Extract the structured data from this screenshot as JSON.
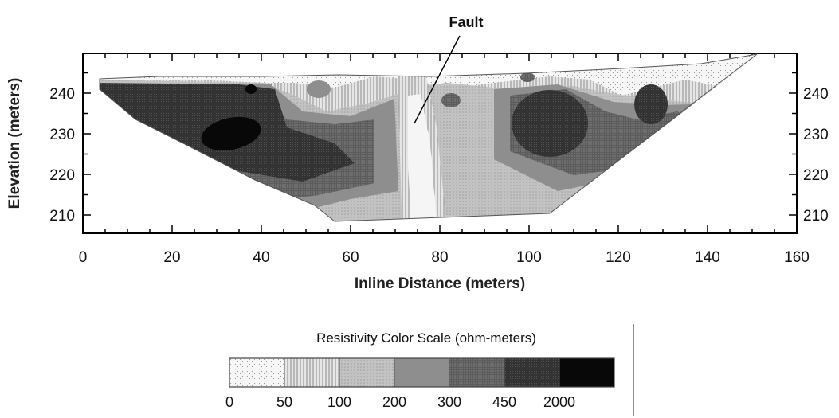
{
  "chart_data": {
    "type": "heatmap",
    "title": "",
    "xlabel": "Inline Distance (meters)",
    "ylabel": "Elevation (meters)",
    "xlim": [
      0,
      160
    ],
    "ylim": [
      205,
      250
    ],
    "x_ticks": [
      0,
      20,
      40,
      60,
      80,
      100,
      120,
      140,
      160
    ],
    "y_ticks": [
      210,
      220,
      230,
      240
    ],
    "grid": false,
    "annotations": [
      {
        "text": "Fault",
        "x": 74,
        "y": 234
      }
    ],
    "profile_outline": {
      "x": [
        4,
        20,
        40,
        57,
        76,
        105,
        152
      ],
      "surface": [
        243.5,
        244,
        244,
        245,
        244.5,
        246,
        249
      ],
      "bottom": [
        241,
        225,
        214,
        208,
        208,
        210,
        249
      ]
    },
    "color_scale": {
      "title": "Resistivity Color Scale (ohm-meters)",
      "boundaries": [
        "0",
        "50",
        "100",
        "200",
        "300",
        "450",
        "2000"
      ],
      "classes": [
        {
          "range": "0-50",
          "color": "#f7f7f7"
        },
        {
          "range": "50-100",
          "color": "#d9d9d9"
        },
        {
          "range": "100-200",
          "color": "#bdbdbd"
        },
        {
          "range": "200-300",
          "color": "#8e8e8e"
        },
        {
          "range": "300-450",
          "color": "#626262"
        },
        {
          "range": "450-2000",
          "color": "#3a3a3a"
        },
        {
          "range": ">2000",
          "color": "#080808"
        }
      ]
    }
  }
}
